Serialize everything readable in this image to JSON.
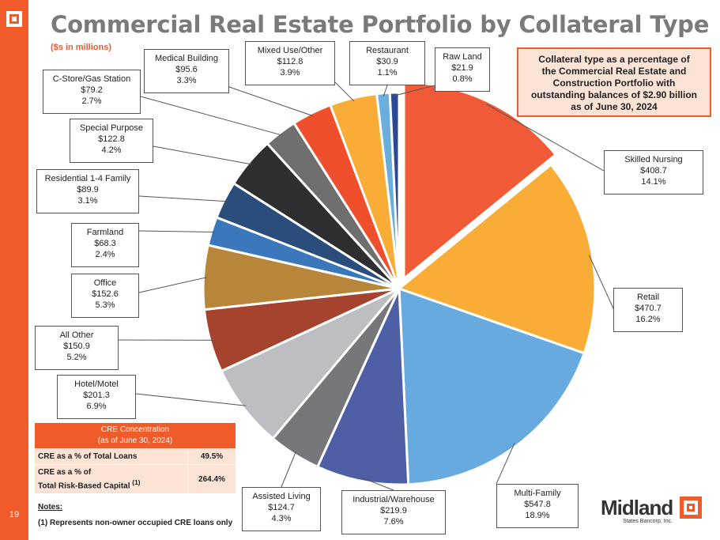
{
  "page": {
    "number": "19"
  },
  "title": "Commercial Real Estate Portfolio by Collateral Type",
  "subtitle": "($s in millions)",
  "callout": {
    "line1": "Collateral type as a percentage of",
    "line2": "the Commercial Real Estate and",
    "line3": "Construction Portfolio with",
    "line4": "outstanding balances of $2.90 billion",
    "line5": "as of June 30, 2024"
  },
  "chart_data": {
    "type": "pie",
    "title": "Commercial Real Estate Portfolio by Collateral Type",
    "unit": "$s in millions",
    "slices": [
      {
        "name": "Skilled Nursing",
        "amount": "$408.7",
        "pct": "14.1%",
        "value": 408.7,
        "percent": 14.1,
        "color": "#f15a36"
      },
      {
        "name": "Retail",
        "amount": "$470.7",
        "pct": "16.2%",
        "value": 470.7,
        "percent": 16.2,
        "color": "#f9ad36"
      },
      {
        "name": "Multi-Family",
        "amount": "$547.8",
        "pct": "18.9%",
        "value": 547.8,
        "percent": 18.9,
        "color": "#67aadf"
      },
      {
        "name": "Industrial/Warehouse",
        "amount": "$219.9",
        "pct": "7.6%",
        "value": 219.9,
        "percent": 7.6,
        "color": "#4e5fa6"
      },
      {
        "name": "Assisted Living",
        "amount": "$124.7",
        "pct": "4.3%",
        "value": 124.7,
        "percent": 4.3,
        "color": "#76777b"
      },
      {
        "name": "Hotel/Motel",
        "amount": "$201.3",
        "pct": "6.9%",
        "value": 201.3,
        "percent": 6.9,
        "color": "#bdbec1"
      },
      {
        "name": "All Other",
        "amount": "$150.9",
        "pct": "5.2%",
        "value": 150.9,
        "percent": 5.2,
        "color": "#a5432f"
      },
      {
        "name": "Office",
        "amount": "$152.6",
        "pct": "5.3%",
        "value": 152.6,
        "percent": 5.3,
        "color": "#b8863a"
      },
      {
        "name": "Farmland",
        "amount": "$68.3",
        "pct": "2.4%",
        "value": 68.3,
        "percent": 2.4,
        "color": "#3a77bb"
      },
      {
        "name": "Residential 1-4 Family",
        "amount": "$89.9",
        "pct": "3.1%",
        "value": 89.9,
        "percent": 3.1,
        "color": "#2a4d7c"
      },
      {
        "name": "Special Purpose",
        "amount": "$122.8",
        "pct": "4.2%",
        "value": 122.8,
        "percent": 4.2,
        "color": "#2e2e30"
      },
      {
        "name": "C-Store/Gas Station",
        "amount": "$79.2",
        "pct": "2.7%",
        "value": 79.2,
        "percent": 2.7,
        "color": "#6f6f6f"
      },
      {
        "name": "Medical Building",
        "amount": "$95.6",
        "pct": "3.3%",
        "value": 95.6,
        "percent": 3.3,
        "color": "#ef4f2c"
      },
      {
        "name": "Mixed Use/Other",
        "amount": "$112.8",
        "pct": "3.9%",
        "value": 112.8,
        "percent": 3.9,
        "color": "#f9ad36"
      },
      {
        "name": "Restaurant",
        "amount": "$30.9",
        "pct": "1.1%",
        "value": 30.9,
        "percent": 1.1,
        "color": "#6aaede"
      },
      {
        "name": "Raw Land",
        "amount": "$21.9",
        "pct": "0.8%",
        "value": 21.9,
        "percent": 0.8,
        "color": "#2b4a94"
      }
    ]
  },
  "cre_table": {
    "header1": "CRE Concentration",
    "header2": "(as of June 30, 2024)",
    "row1_label": "CRE as a % of Total Loans",
    "row1_value": "49.5%",
    "row2_label1": "CRE as a % of",
    "row2_label2": "Total Risk-Based Capital",
    "row2_sup": "(1)",
    "row2_value": "264.4%"
  },
  "notes": {
    "title": "Notes:",
    "item1": "(1)   Represents non-owner occupied CRE loans only"
  },
  "brand": {
    "name": "Midland",
    "sub": "States Bancorp, Inc."
  },
  "colors": {
    "accent": "#f15a29",
    "title_gray": "#7a7a7a"
  }
}
